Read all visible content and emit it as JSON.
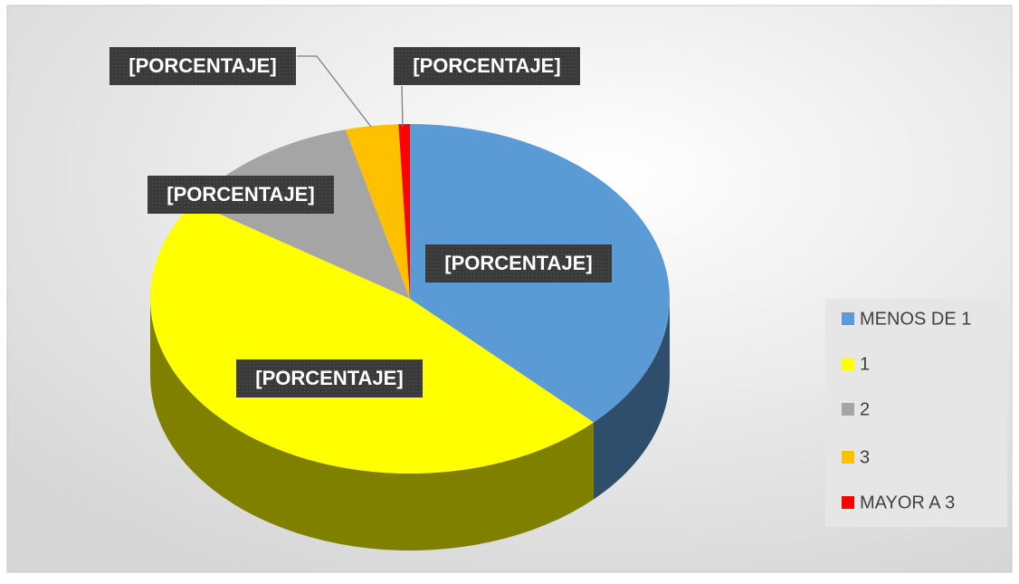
{
  "chart_data": {
    "type": "pie",
    "categories": [
      "MENOS DE 1",
      "1",
      "2",
      "3",
      "MAYOR A 3"
    ],
    "values": [
      37.5,
      46.8,
      11.7,
      3.3,
      0.7
    ],
    "value_labels": [
      "[PORCENTAJE]",
      "[PORCENTAJE]",
      "[PORCENTAJE]",
      "[PORCENTAJE]",
      "[PORCENTAJE]"
    ],
    "colors": [
      "#5b9bd5",
      "#ffff00",
      "#a5a5a5",
      "#ffc000",
      "#ff0000"
    ],
    "legend": "right"
  }
}
